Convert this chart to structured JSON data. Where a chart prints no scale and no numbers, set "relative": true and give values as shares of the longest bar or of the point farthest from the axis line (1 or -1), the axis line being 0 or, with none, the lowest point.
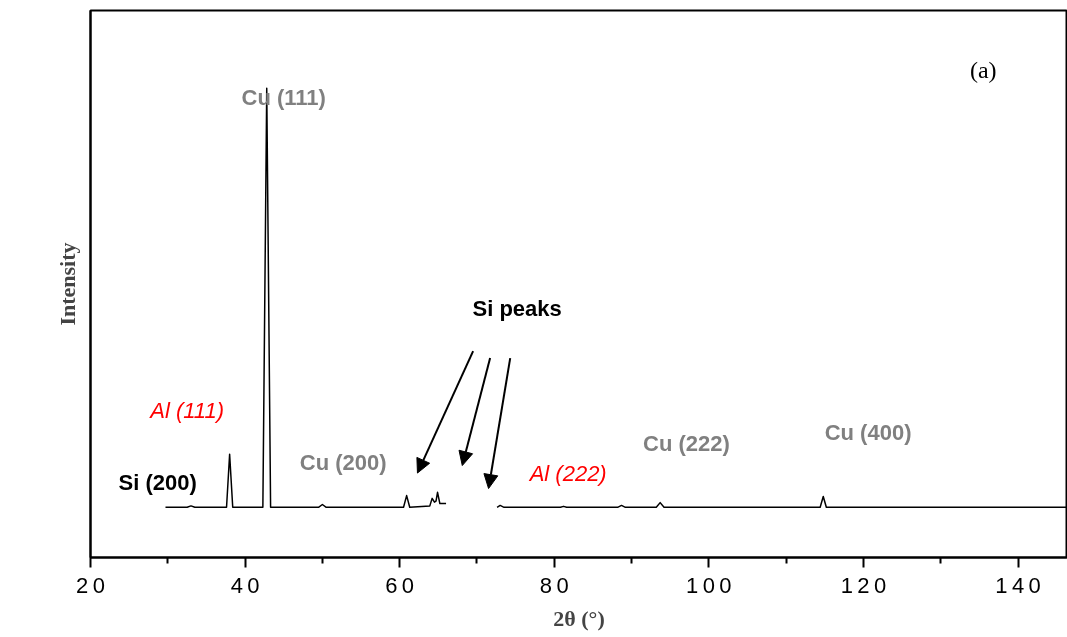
{
  "chart_data": {
    "type": "line",
    "relative": true,
    "xlabel": "2θ (°)",
    "ylabel": "Intensity",
    "color": "#000000",
    "xlim": [
      20,
      146.4
    ],
    "xticks": [
      20,
      {
        "value": 30,
        "label": null
      },
      40,
      {
        "value": 50,
        "label": null
      },
      60,
      {
        "value": 70,
        "label": null
      },
      80,
      {
        "value": 90,
        "label": null
      },
      100,
      {
        "value": 110,
        "label": null
      },
      120,
      {
        "value": 130,
        "label": null
      },
      140
    ],
    "x": [
      29.7,
      32.5,
      33.0,
      33.5,
      37.6,
      38.0,
      38.4,
      42.3,
      42.8,
      43.3,
      49.5,
      50.0,
      50.5,
      60.5,
      60.9,
      61.3,
      63.9,
      64.2,
      64.5,
      64.7,
      64.9,
      65.2,
      66.0,
      71.0,
      72.6,
      73.0,
      73.5,
      80.8,
      81.2,
      81.6,
      88.2,
      88.7,
      89.2,
      93.2,
      93.7,
      94.2,
      114.4,
      114.8,
      115.2,
      146.4
    ],
    "values": [
      0.107,
      0.107,
      0.11,
      0.107,
      0.107,
      0.22,
      0.107,
      0.107,
      1.0,
      0.107,
      0.107,
      0.113,
      0.107,
      0.107,
      0.132,
      0.107,
      0.11,
      0.126,
      0.118,
      0.12,
      0.139,
      0.115,
      0.115,
      null,
      0.107,
      0.111,
      0.107,
      0.107,
      0.109,
      0.107,
      0.107,
      0.111,
      0.107,
      0.107,
      0.117,
      0.107,
      0.107,
      0.13,
      0.107,
      0.107
    ],
    "grid": false,
    "annotations": [
      "(a)",
      "Cu (111)",
      "Al (111)",
      "Si (200)",
      "Cu (200)",
      "Si peaks",
      "Al (222)",
      "Cu (222)",
      "Cu (400)"
    ]
  }
}
